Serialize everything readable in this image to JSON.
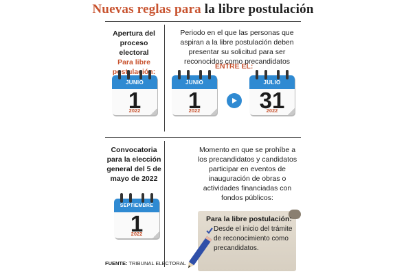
{
  "title": {
    "part1": "Nuevas reglas para",
    "part2": "la libre postulación"
  },
  "section1": {
    "left_heading": "Apertura del proceso electoral",
    "left_sub": "Para libre postulación:",
    "left_cal": {
      "month": "JUNIO",
      "day": "1",
      "year": "2022"
    },
    "right_text": "Periodo en el que las personas que aspiran a la libre postulación deben presentar su solicitud para  ser reconocidos como precandidatos",
    "between_label": "ENTRE EL:",
    "cal_start": {
      "month": "JUNIO",
      "day": "1",
      "year": "2022"
    },
    "cal_end": {
      "month": "JULIO",
      "day": "31",
      "year": "2022"
    },
    "arrow_icon": "play-arrow-icon"
  },
  "section2": {
    "left_heading": "Convocatoria para la elección general del 5 de mayo de 2022",
    "left_cal": {
      "month": "SEPTIEMBRE",
      "day": "1",
      "year": "2022"
    },
    "right_text": "Momento en que se prohíbe a los precandidatos y candidatos participar en eventos de inauguración de obras o actividades financiadas con fondos públicos:",
    "scroll_title": "Para la libre postulación:",
    "scroll_text": "Desde el inicio del trámite de reconocimiento como precandidatos.",
    "check_icon": "check-icon",
    "pencil_icon": "pencil-icon"
  },
  "footer": {
    "label": "FUENTE:",
    "source": "TRIBUNAL ELECTORAL"
  },
  "colors": {
    "accent": "#c8532f",
    "calendar_blue": "#2f8ad2",
    "rule": "#3a3a3a"
  }
}
